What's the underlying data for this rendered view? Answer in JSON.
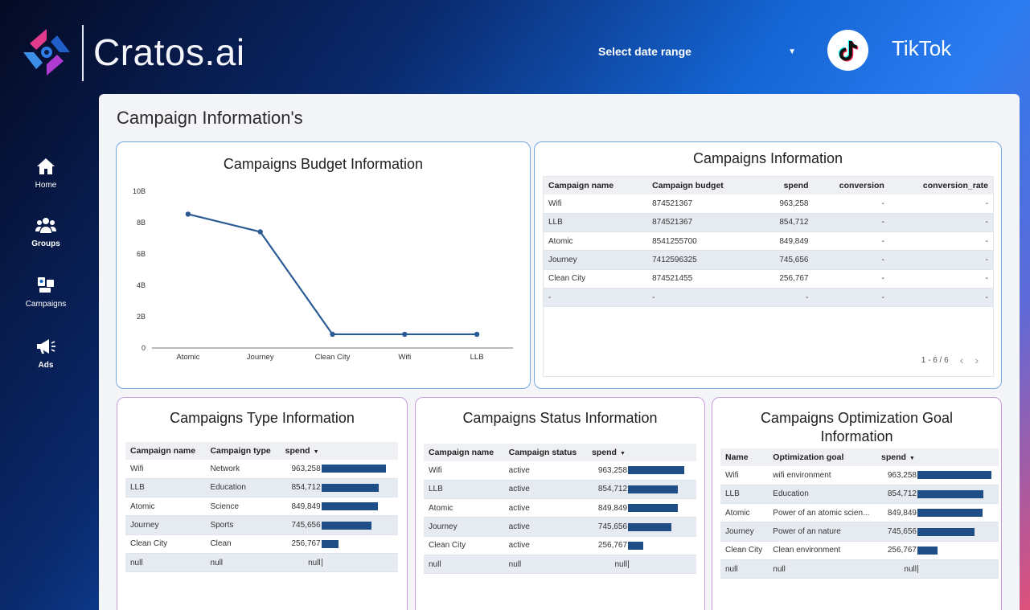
{
  "brand": {
    "name": "Cratos.ai"
  },
  "header": {
    "date_range_label": "Select date range",
    "platform": "TikTok"
  },
  "sidebar": {
    "items": [
      {
        "label": "Home",
        "icon": "home-icon"
      },
      {
        "label": "Groups",
        "icon": "groups-icon"
      },
      {
        "label": "Campaigns",
        "icon": "campaigns-icon"
      },
      {
        "label": "Ads",
        "icon": "megaphone-icon"
      }
    ]
  },
  "page": {
    "title": "Campaign Information's"
  },
  "budget_chart": {
    "title": "Campaigns Budget Information",
    "chart_data": {
      "type": "line",
      "categories": [
        "Atomic",
        "Journey",
        "Clean City",
        "Wifi",
        "LLB"
      ],
      "values": [
        8541255700,
        7412596325,
        874521455,
        874521367,
        874521367
      ],
      "yticks": [
        "0",
        "2B",
        "4B",
        "6B",
        "8B",
        "10B"
      ],
      "ylim": [
        0,
        10000000000
      ],
      "color": "#2b5b95",
      "grid": false
    }
  },
  "info_table": {
    "title": "Campaigns  Information",
    "columns": [
      "Campaign name",
      "Campaign budget",
      "spend",
      "conversion",
      "conversion_rate"
    ],
    "rows": [
      [
        "Wifi",
        "874521367",
        "963,258",
        "-",
        "-"
      ],
      [
        "LLB",
        "874521367",
        "854,712",
        "-",
        "-"
      ],
      [
        "Atomic",
        "8541255700",
        "849,849",
        "-",
        "-"
      ],
      [
        "Journey",
        "7412596325",
        "745,656",
        "-",
        "-"
      ],
      [
        "Clean City",
        "874521455",
        "256,767",
        "-",
        "-"
      ],
      [
        "-",
        "-",
        "-",
        "-",
        "-"
      ]
    ],
    "pager": "1 - 6 / 6"
  },
  "type_table": {
    "title": "Campaigns Type Information",
    "columns": [
      "Campaign name",
      "Campaign type",
      "spend"
    ],
    "rows": [
      {
        "name": "Wifi",
        "type": "Network",
        "spend": "963,258",
        "value": 963258
      },
      {
        "name": "LLB",
        "type": "Education",
        "spend": "854,712",
        "value": 854712
      },
      {
        "name": "Atomic",
        "type": "Science",
        "spend": "849,849",
        "value": 849849
      },
      {
        "name": "Journey",
        "type": "Sports",
        "spend": "745,656",
        "value": 745656
      },
      {
        "name": "Clean City",
        "type": "Clean",
        "spend": "256,767",
        "value": 256767
      },
      {
        "name": "null",
        "type": "null",
        "spend": "null",
        "value": 0
      }
    ]
  },
  "status_table": {
    "title": "Campaigns Status Information",
    "columns": [
      "Campaign name",
      "Campaign status",
      "spend"
    ],
    "rows": [
      {
        "name": "Wifi",
        "type": "active",
        "spend": "963,258",
        "value": 963258
      },
      {
        "name": "LLB",
        "type": "active",
        "spend": "854,712",
        "value": 854712
      },
      {
        "name": "Atomic",
        "type": "active",
        "spend": "849,849",
        "value": 849849
      },
      {
        "name": "Journey",
        "type": "active",
        "spend": "745,656",
        "value": 745656
      },
      {
        "name": "Clean City",
        "type": "active",
        "spend": "256,767",
        "value": 256767
      },
      {
        "name": "null",
        "type": "null",
        "spend": "null",
        "value": 0
      }
    ]
  },
  "goal_table": {
    "title": "Campaigns Optimization Goal Information",
    "columns": [
      "Name",
      "Optimization goal",
      "spend"
    ],
    "rows": [
      {
        "name": "Wifi",
        "type": "wifi environment",
        "spend": "963,258",
        "value": 963258
      },
      {
        "name": "LLB",
        "type": "Education",
        "spend": "854,712",
        "value": 854712
      },
      {
        "name": "Atomic",
        "type": "Power of an atomic scien...",
        "spend": "849,849",
        "value": 849849
      },
      {
        "name": "Journey",
        "type": "Power of an nature",
        "spend": "745,656",
        "value": 745656
      },
      {
        "name": "Clean City",
        "type": "Clean environment",
        "spend": "256,767",
        "value": 256767
      },
      {
        "name": "null",
        "type": "null",
        "spend": "null",
        "value": 0
      }
    ]
  }
}
